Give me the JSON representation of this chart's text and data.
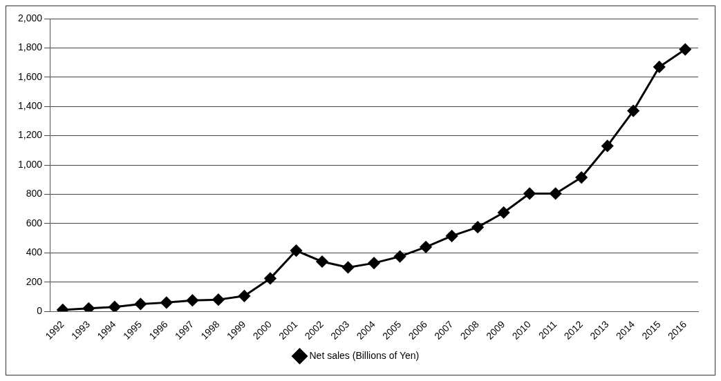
{
  "chart_data": {
    "type": "line",
    "categories": [
      "1992",
      "1993",
      "1994",
      "1995",
      "1996",
      "1997",
      "1998",
      "1999",
      "2000",
      "2001",
      "2002",
      "2003",
      "2004",
      "2005",
      "2006",
      "2007",
      "2008",
      "2009",
      "2010",
      "2011",
      "2012",
      "2013",
      "2014",
      "2015",
      "2016"
    ],
    "series": [
      {
        "name": "Net sales (Billions of Yen)",
        "color": "#000000",
        "values": [
          10,
          20,
          30,
          50,
          60,
          75,
          80,
          105,
          225,
          415,
          340,
          300,
          330,
          375,
          440,
          515,
          575,
          675,
          805,
          805,
          915,
          1130,
          1370,
          1670,
          1790
        ]
      }
    ],
    "ylim": [
      0,
      2000
    ],
    "yticks": [
      0,
      200,
      400,
      600,
      800,
      {
        "value": 1000,
        "label": "1,000"
      },
      {
        "value": 1200,
        "label": "1,200"
      },
      {
        "value": 1400,
        "label": "1,400"
      },
      {
        "value": 1600,
        "label": "1,600"
      },
      {
        "value": 1800,
        "label": "1,800"
      },
      {
        "value": 2000,
        "label": "2,000"
      }
    ],
    "grid": "y",
    "legend": "bottom",
    "marker": "diamond",
    "line_style": "solid"
  }
}
